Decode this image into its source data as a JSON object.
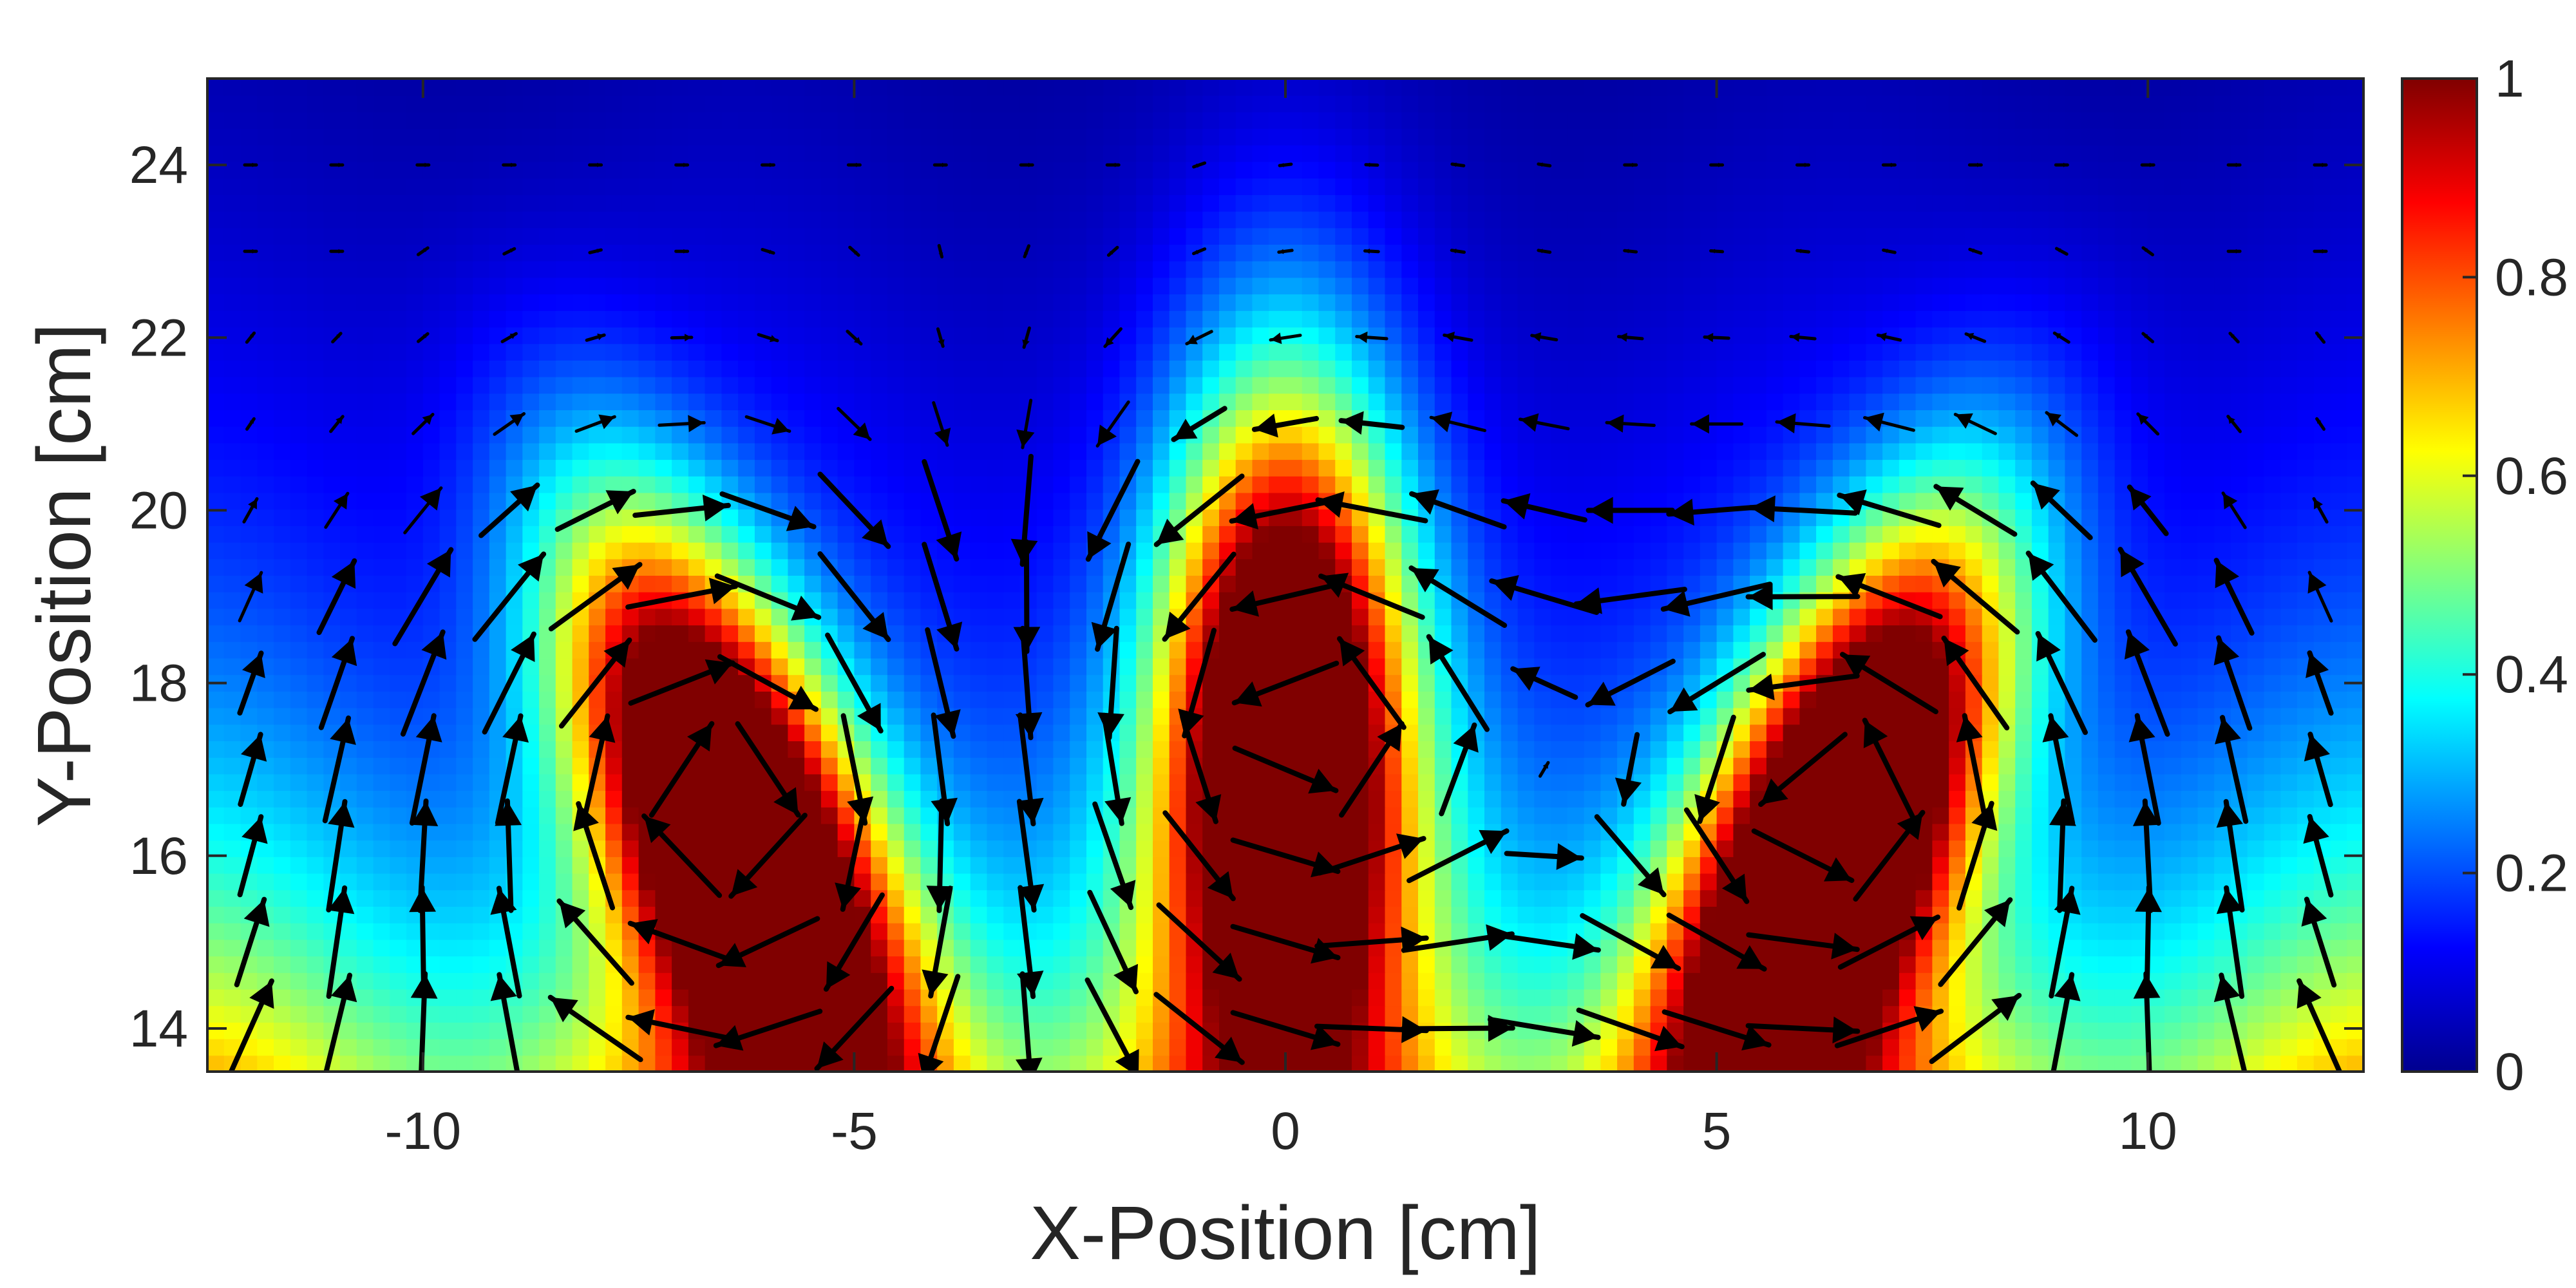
{
  "chart_data": {
    "type": "heatmap",
    "title": "",
    "xlabel": "X-Position [cm]",
    "ylabel": "Y-Position [cm]",
    "xlim": [
      -12.5,
      12.5
    ],
    "ylim": [
      13.5,
      25
    ],
    "x_ticks": [
      -10,
      -5,
      0,
      5,
      10
    ],
    "y_ticks": [
      14,
      16,
      18,
      20,
      22,
      24
    ],
    "x_tick_labels": [
      "-10",
      "-5",
      "0",
      "5",
      "10"
    ],
    "y_tick_labels": [
      "14",
      "16",
      "18",
      "20",
      "22",
      "24"
    ],
    "colormap": "jet",
    "clim": [
      0,
      1
    ],
    "colorbar": {
      "position": "right",
      "ticks": [
        0,
        0.2,
        0.4,
        0.6,
        0.8,
        1
      ],
      "tick_labels": [
        "0",
        "0.2",
        "0.4",
        "0.6",
        "0.8",
        "1"
      ]
    },
    "overlay": "quiver",
    "quiver_color": "#000000",
    "hotspots": [
      {
        "x": -6.4,
        "y": 16.6,
        "peak": 1.0
      },
      {
        "x": 0.0,
        "y": 17.5,
        "peak": 1.0
      },
      {
        "x": 6.4,
        "y": 16.6,
        "peak": 1.0
      }
    ],
    "grid": false
  }
}
